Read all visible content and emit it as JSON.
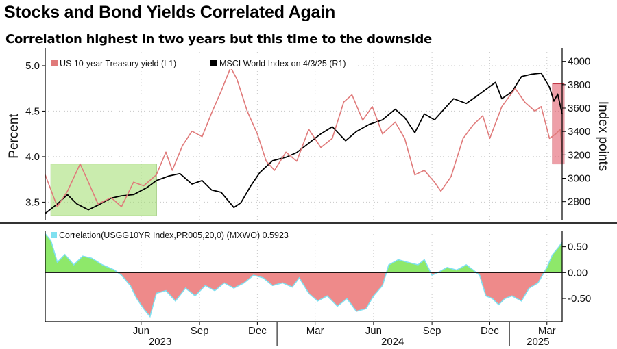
{
  "title": "Stocks and Bond Yields Correlated Again",
  "subtitle": "Correlation highest in two years but this time to the downside",
  "chart_data": [
    {
      "type": "line",
      "ylabel_left": "Percent",
      "ylabel_right": "Index points",
      "ylim_left": [
        3.3,
        5.15
      ],
      "ylim_right": [
        2640,
        4080
      ],
      "yticks_left": [
        "3.5",
        "4.0",
        "4.5",
        "5.0"
      ],
      "yticks_left_values": [
        3.5,
        4.0,
        4.5,
        5.0
      ],
      "yticks_right": [
        "2800",
        "3000",
        "3200",
        "3400",
        "3600",
        "3800",
        "4000"
      ],
      "yticks_right_values": [
        2800,
        3000,
        3200,
        3400,
        3600,
        3800,
        4000
      ],
      "x_range": [
        "2023-01-01",
        "2025-03-25"
      ],
      "x_ticks": [
        {
          "label": "Jun",
          "date": "2023-06-01"
        },
        {
          "label": "Sep",
          "date": "2023-09-01"
        },
        {
          "label": "Dec",
          "date": "2023-12-01"
        },
        {
          "label": "Mar",
          "date": "2024-03-01"
        },
        {
          "label": "Jun",
          "date": "2024-06-01"
        },
        {
          "label": "Sep",
          "date": "2024-09-01"
        },
        {
          "label": "Dec",
          "date": "2024-12-01"
        },
        {
          "label": "Mar",
          "date": "2025-03-01"
        }
      ],
      "year_labels": [
        {
          "label": "2023",
          "date": "2023-07-01"
        },
        {
          "label": "2024",
          "date": "2024-07-01"
        },
        {
          "label": "2025",
          "date": "2025-02-15"
        }
      ],
      "series": [
        {
          "name": "MSCI World Index on 4/3/25 (R1)",
          "axis": "right",
          "color": "#000000",
          "points": [
            [
              "2023-01-01",
              2700
            ],
            [
              "2023-01-20",
              2780
            ],
            [
              "2023-02-05",
              2860
            ],
            [
              "2023-02-20",
              2780
            ],
            [
              "2023-03-10",
              2730
            ],
            [
              "2023-03-25",
              2770
            ],
            [
              "2023-04-15",
              2830
            ],
            [
              "2023-05-01",
              2850
            ],
            [
              "2023-05-20",
              2860
            ],
            [
              "2023-06-10",
              2920
            ],
            [
              "2023-06-25",
              2980
            ],
            [
              "2023-07-15",
              3020
            ],
            [
              "2023-08-01",
              3040
            ],
            [
              "2023-08-20",
              2950
            ],
            [
              "2023-09-05",
              2980
            ],
            [
              "2023-09-20",
              2900
            ],
            [
              "2023-10-05",
              2880
            ],
            [
              "2023-10-25",
              2750
            ],
            [
              "2023-11-05",
              2790
            ],
            [
              "2023-11-20",
              2930
            ],
            [
              "2023-12-05",
              3050
            ],
            [
              "2023-12-25",
              3150
            ],
            [
              "2024-01-15",
              3180
            ],
            [
              "2024-02-01",
              3220
            ],
            [
              "2024-02-20",
              3300
            ],
            [
              "2024-03-10",
              3380
            ],
            [
              "2024-03-28",
              3440
            ],
            [
              "2024-04-18",
              3320
            ],
            [
              "2024-05-05",
              3400
            ],
            [
              "2024-05-25",
              3460
            ],
            [
              "2024-06-15",
              3500
            ],
            [
              "2024-07-05",
              3590
            ],
            [
              "2024-07-20",
              3520
            ],
            [
              "2024-08-05",
              3390
            ],
            [
              "2024-08-20",
              3550
            ],
            [
              "2024-09-05",
              3500
            ],
            [
              "2024-09-20",
              3590
            ],
            [
              "2024-10-05",
              3680
            ],
            [
              "2024-10-25",
              3640
            ],
            [
              "2024-11-10",
              3700
            ],
            [
              "2024-11-25",
              3760
            ],
            [
              "2024-12-10",
              3820
            ],
            [
              "2024-12-20",
              3680
            ],
            [
              "2025-01-05",
              3740
            ],
            [
              "2025-01-20",
              3870
            ],
            [
              "2025-02-05",
              3890
            ],
            [
              "2025-02-20",
              3900
            ],
            [
              "2025-03-05",
              3780
            ],
            [
              "2025-03-12",
              3660
            ],
            [
              "2025-03-18",
              3720
            ],
            [
              "2025-03-25",
              3550
            ]
          ]
        },
        {
          "name": "US 10-year Treasury yield (L1)",
          "axis": "left",
          "color": "#e07a7a",
          "points": [
            [
              "2023-01-01",
              3.8
            ],
            [
              "2023-01-20",
              3.45
            ],
            [
              "2023-02-05",
              3.62
            ],
            [
              "2023-02-25",
              3.92
            ],
            [
              "2023-03-10",
              3.72
            ],
            [
              "2023-03-25",
              3.48
            ],
            [
              "2023-04-15",
              3.55
            ],
            [
              "2023-05-01",
              3.45
            ],
            [
              "2023-05-20",
              3.72
            ],
            [
              "2023-06-05",
              3.68
            ],
            [
              "2023-06-25",
              3.8
            ],
            [
              "2023-07-10",
              4.05
            ],
            [
              "2023-07-20",
              3.85
            ],
            [
              "2023-08-05",
              4.12
            ],
            [
              "2023-08-20",
              4.28
            ],
            [
              "2023-09-05",
              4.22
            ],
            [
              "2023-09-20",
              4.48
            ],
            [
              "2023-10-05",
              4.72
            ],
            [
              "2023-10-20",
              4.98
            ],
            [
              "2023-10-30",
              4.85
            ],
            [
              "2023-11-15",
              4.5
            ],
            [
              "2023-12-01",
              4.25
            ],
            [
              "2023-12-15",
              3.95
            ],
            [
              "2023-12-28",
              3.85
            ],
            [
              "2024-01-15",
              4.05
            ],
            [
              "2024-02-01",
              3.95
            ],
            [
              "2024-02-20",
              4.3
            ],
            [
              "2024-03-10",
              4.1
            ],
            [
              "2024-03-28",
              4.2
            ],
            [
              "2024-04-15",
              4.6
            ],
            [
              "2024-04-28",
              4.68
            ],
            [
              "2024-05-15",
              4.4
            ],
            [
              "2024-05-30",
              4.55
            ],
            [
              "2024-06-15",
              4.25
            ],
            [
              "2024-07-05",
              4.38
            ],
            [
              "2024-07-20",
              4.2
            ],
            [
              "2024-08-05",
              3.8
            ],
            [
              "2024-08-20",
              3.85
            ],
            [
              "2024-09-05",
              3.72
            ],
            [
              "2024-09-15",
              3.62
            ],
            [
              "2024-10-01",
              3.78
            ],
            [
              "2024-10-20",
              4.2
            ],
            [
              "2024-11-05",
              4.35
            ],
            [
              "2024-11-20",
              4.45
            ],
            [
              "2024-12-01",
              4.2
            ],
            [
              "2024-12-20",
              4.55
            ],
            [
              "2025-01-10",
              4.75
            ],
            [
              "2025-01-25",
              4.6
            ],
            [
              "2025-02-10",
              4.5
            ],
            [
              "2025-02-20",
              4.55
            ],
            [
              "2025-03-05",
              4.2
            ],
            [
              "2025-03-15",
              4.25
            ],
            [
              "2025-03-22",
              4.3
            ],
            [
              "2025-03-25",
              4.05
            ]
          ]
        }
      ],
      "highlights": [
        {
          "name": "green",
          "color": "#9fdc6b",
          "x": [
            "2023-01-10",
            "2023-06-25"
          ],
          "y_left": [
            3.35,
            3.92
          ]
        },
        {
          "name": "red",
          "color": "#e05060",
          "x": [
            "2025-03-10",
            "2025-03-28"
          ],
          "y_left": [
            3.92,
            4.8
          ]
        }
      ]
    },
    {
      "type": "area",
      "legend": "Correlation(USGG10YR Index,PR005,20,0) (MXWO) 0.5923",
      "legend_color": "#7fe0f0",
      "ylim": [
        -0.95,
        0.8
      ],
      "yticks": [
        "0.50",
        "0.00",
        "-0.50"
      ],
      "yticks_values": [
        0.5,
        0.0,
        -0.5
      ],
      "positive_fill": "#8ee86a",
      "negative_fill": "#ee8a8a",
      "line_color": "#7fe0f0",
      "points": [
        [
          "2023-01-01",
          0.75
        ],
        [
          "2023-01-10",
          0.62
        ],
        [
          "2023-01-20",
          0.2
        ],
        [
          "2023-02-01",
          0.35
        ],
        [
          "2023-02-15",
          0.15
        ],
        [
          "2023-03-01",
          0.32
        ],
        [
          "2023-03-15",
          0.28
        ],
        [
          "2023-04-01",
          0.15
        ],
        [
          "2023-04-20",
          0.05
        ],
        [
          "2023-05-01",
          -0.05
        ],
        [
          "2023-05-15",
          -0.25
        ],
        [
          "2023-05-25",
          -0.5
        ],
        [
          "2023-06-05",
          -0.7
        ],
        [
          "2023-06-15",
          -0.85
        ],
        [
          "2023-06-25",
          -0.4
        ],
        [
          "2023-07-10",
          -0.35
        ],
        [
          "2023-07-25",
          -0.55
        ],
        [
          "2023-08-10",
          -0.3
        ],
        [
          "2023-08-25",
          -0.45
        ],
        [
          "2023-09-10",
          -0.25
        ],
        [
          "2023-09-25",
          -0.35
        ],
        [
          "2023-10-10",
          -0.2
        ],
        [
          "2023-10-25",
          -0.3
        ],
        [
          "2023-11-10",
          -0.2
        ],
        [
          "2023-11-25",
          -0.05
        ],
        [
          "2023-12-10",
          -0.1
        ],
        [
          "2023-12-25",
          -0.25
        ],
        [
          "2024-01-10",
          -0.2
        ],
        [
          "2024-01-25",
          -0.28
        ],
        [
          "2024-02-05",
          -0.1
        ],
        [
          "2024-02-20",
          -0.4
        ],
        [
          "2024-03-05",
          -0.55
        ],
        [
          "2024-03-20",
          -0.45
        ],
        [
          "2024-04-05",
          -0.65
        ],
        [
          "2024-04-20",
          -0.5
        ],
        [
          "2024-05-05",
          -0.75
        ],
        [
          "2024-05-20",
          -0.7
        ],
        [
          "2024-06-01",
          -0.45
        ],
        [
          "2024-06-15",
          -0.25
        ],
        [
          "2024-06-25",
          0.15
        ],
        [
          "2024-07-10",
          0.25
        ],
        [
          "2024-07-25",
          0.2
        ],
        [
          "2024-08-10",
          0.15
        ],
        [
          "2024-08-20",
          0.25
        ],
        [
          "2024-09-01",
          -0.05
        ],
        [
          "2024-09-10",
          0.0
        ],
        [
          "2024-09-25",
          0.1
        ],
        [
          "2024-10-10",
          0.05
        ],
        [
          "2024-10-25",
          0.15
        ],
        [
          "2024-11-05",
          0.05
        ],
        [
          "2024-11-15",
          -0.05
        ],
        [
          "2024-11-25",
          -0.45
        ],
        [
          "2024-12-05",
          -0.5
        ],
        [
          "2024-12-15",
          -0.62
        ],
        [
          "2024-12-25",
          -0.5
        ],
        [
          "2025-01-05",
          -0.45
        ],
        [
          "2025-01-20",
          -0.55
        ],
        [
          "2025-02-01",
          -0.3
        ],
        [
          "2025-02-15",
          -0.2
        ],
        [
          "2025-03-01",
          0.1
        ],
        [
          "2025-03-10",
          0.35
        ],
        [
          "2025-03-20",
          0.5
        ],
        [
          "2025-03-25",
          0.59
        ]
      ]
    }
  ]
}
